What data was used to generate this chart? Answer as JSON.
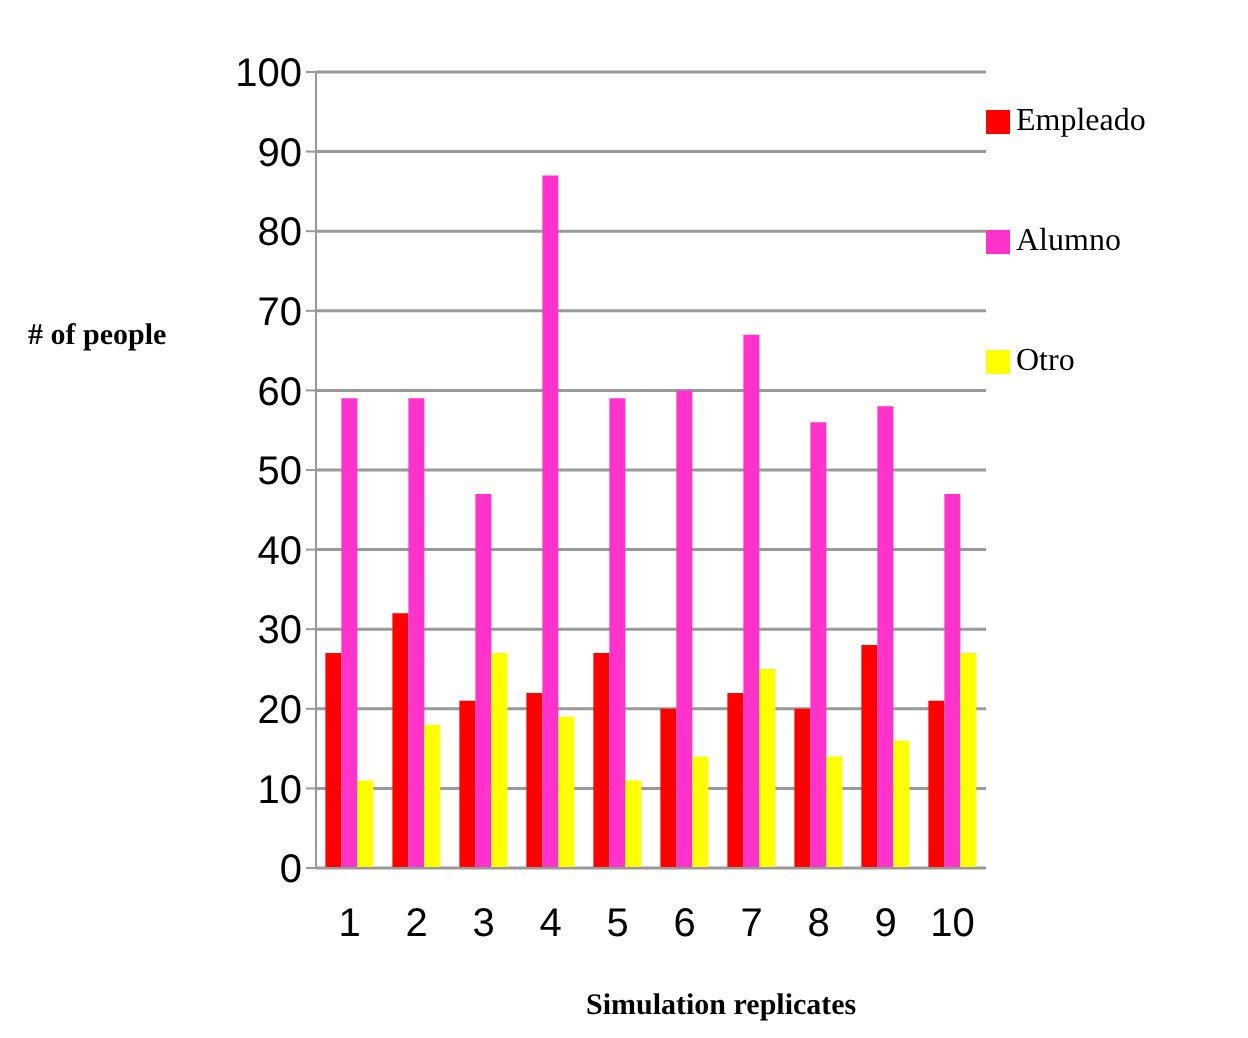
{
  "chart_data": {
    "type": "bar",
    "xlabel": "Simulation replicates",
    "ylabel": "# of people",
    "categories": [
      "1",
      "2",
      "3",
      "4",
      "5",
      "6",
      "7",
      "8",
      "9",
      "10"
    ],
    "series": [
      {
        "name": "Empleado",
        "color": "#ff0000",
        "values": [
          27,
          32,
          21,
          22,
          27,
          20,
          22,
          20,
          28,
          21
        ]
      },
      {
        "name": "Alumno",
        "color": "#ff33cc",
        "values": [
          59,
          59,
          47,
          87,
          59,
          60,
          67,
          56,
          58,
          47
        ]
      },
      {
        "name": "Otro",
        "color": "#ffff00",
        "values": [
          11,
          18,
          27,
          19,
          11,
          14,
          25,
          14,
          16,
          27
        ]
      }
    ],
    "ylim": [
      0,
      100
    ],
    "yticks": [
      0,
      10,
      20,
      30,
      40,
      50,
      60,
      70,
      80,
      90,
      100
    ],
    "grid": "y",
    "legend": "right"
  }
}
